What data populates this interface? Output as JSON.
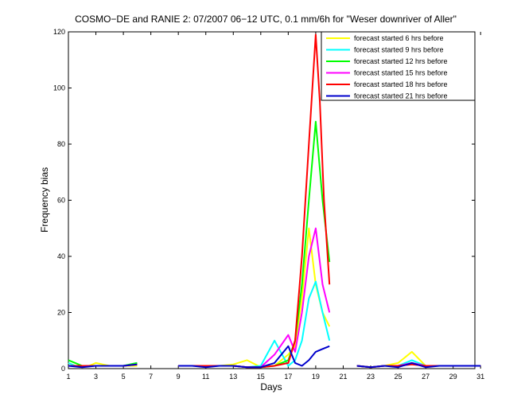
{
  "chart_data": {
    "type": "line",
    "title": "COSMO−DE and RANIE 2: 07/2007 06−12 UTC, 0.1 mm/6h for \"Weser downriver of Aller\"",
    "xlabel": "Days",
    "ylabel": "Frequency bias",
    "xlim": [
      1,
      31
    ],
    "ylim": [
      0,
      120
    ],
    "x_tick_labels": [
      "1",
      "3",
      "5",
      "7",
      "9",
      "11",
      "13",
      "15",
      "17",
      "19",
      "21",
      "23",
      "25",
      "27",
      "29",
      "31"
    ],
    "y_tick_labels": [
      "0",
      "20",
      "40",
      "60",
      "80",
      "100",
      "120"
    ],
    "legend_position": "top-right",
    "grid": false,
    "series": [
      {
        "name": "forecast started 6 hrs before",
        "color": "#ffff00",
        "segments": [
          [
            [
              1,
              2
            ],
            [
              1.5,
              1
            ],
            [
              2,
              1
            ],
            [
              2.5,
              1
            ],
            [
              3,
              2
            ],
            [
              3.5,
              1.5
            ],
            [
              4,
              1
            ],
            [
              4.5,
              1
            ],
            [
              5,
              1
            ],
            [
              6,
              1
            ]
          ],
          [
            [
              9,
              1
            ],
            [
              10,
              1
            ],
            [
              11,
              1
            ],
            [
              12,
              1
            ],
            [
              13,
              1.5
            ],
            [
              14,
              3
            ],
            [
              15,
              0.5
            ],
            [
              16,
              1
            ],
            [
              17,
              5
            ],
            [
              17.5,
              8
            ],
            [
              18,
              25
            ],
            [
              18.5,
              50
            ],
            [
              19,
              30
            ],
            [
              19.5,
              20
            ],
            [
              20,
              15
            ]
          ],
          [
            [
              22,
              1
            ],
            [
              23,
              0.5
            ],
            [
              24,
              1
            ],
            [
              25,
              2
            ],
            [
              26,
              6
            ],
            [
              27,
              1
            ],
            [
              28,
              1
            ],
            [
              29,
              1
            ],
            [
              30,
              1
            ],
            [
              31,
              1
            ]
          ]
        ]
      },
      {
        "name": "forecast started 9 hrs before",
        "color": "#00ffff",
        "segments": [
          [
            [
              1,
              2
            ],
            [
              1.5,
              1
            ],
            [
              2,
              1
            ],
            [
              3,
              1
            ],
            [
              4,
              1
            ],
            [
              5,
              1
            ],
            [
              6,
              2
            ]
          ],
          [
            [
              9,
              1
            ],
            [
              10,
              1
            ],
            [
              11,
              1
            ],
            [
              12,
              1
            ],
            [
              13,
              1
            ],
            [
              14,
              0.5
            ],
            [
              15,
              1
            ],
            [
              16,
              10
            ],
            [
              17,
              1
            ],
            [
              17.5,
              3
            ],
            [
              18,
              10
            ],
            [
              18.5,
              25
            ],
            [
              19,
              31
            ],
            [
              19.5,
              20
            ],
            [
              20,
              10
            ]
          ],
          [
            [
              22,
              1
            ],
            [
              23,
              0.5
            ],
            [
              24,
              1
            ],
            [
              25,
              1
            ],
            [
              26,
              3
            ],
            [
              27,
              1
            ],
            [
              28,
              1
            ],
            [
              29,
              1
            ],
            [
              30,
              1
            ],
            [
              31,
              1
            ]
          ]
        ]
      },
      {
        "name": "forecast started 12 hrs before",
        "color": "#00ff00",
        "segments": [
          [
            [
              1,
              3
            ],
            [
              1.5,
              2
            ],
            [
              2,
              1
            ],
            [
              3,
              1
            ],
            [
              4,
              1
            ],
            [
              5,
              1
            ],
            [
              6,
              2
            ]
          ],
          [
            [
              9,
              1
            ],
            [
              10,
              1
            ],
            [
              11,
              1
            ],
            [
              12,
              1
            ],
            [
              13,
              1
            ],
            [
              14,
              0.5
            ],
            [
              15,
              0.5
            ],
            [
              16,
              1
            ],
            [
              17,
              3
            ],
            [
              17.5,
              10
            ],
            [
              18,
              30
            ],
            [
              18.5,
              60
            ],
            [
              19,
              88
            ],
            [
              19.5,
              60
            ],
            [
              20,
              38
            ]
          ],
          [
            [
              22,
              1
            ],
            [
              23,
              0.5
            ],
            [
              24,
              1
            ],
            [
              25,
              1
            ],
            [
              26,
              2
            ],
            [
              27,
              1
            ],
            [
              28,
              1
            ],
            [
              29,
              1
            ],
            [
              30,
              1
            ],
            [
              31,
              1
            ]
          ]
        ]
      },
      {
        "name": "forecast started 15 hrs before",
        "color": "#ff00ff",
        "segments": [
          [
            [
              1,
              1
            ],
            [
              2,
              1
            ],
            [
              3,
              1
            ],
            [
              4,
              1
            ],
            [
              5,
              1
            ],
            [
              6,
              1.5
            ]
          ],
          [
            [
              9,
              1
            ],
            [
              10,
              1
            ],
            [
              11,
              1
            ],
            [
              12,
              1
            ],
            [
              13,
              1
            ],
            [
              14,
              0.5
            ],
            [
              15,
              0.5
            ],
            [
              16,
              5
            ],
            [
              17,
              12
            ],
            [
              17.5,
              6
            ],
            [
              18,
              20
            ],
            [
              18.5,
              40
            ],
            [
              19,
              50
            ],
            [
              19.5,
              30
            ],
            [
              20,
              20
            ]
          ],
          [
            [
              22,
              1
            ],
            [
              23,
              0.5
            ],
            [
              24,
              1
            ],
            [
              25,
              1
            ],
            [
              26,
              2
            ],
            [
              27,
              1
            ],
            [
              28,
              1
            ],
            [
              29,
              1
            ],
            [
              30,
              1
            ],
            [
              31,
              1
            ]
          ]
        ]
      },
      {
        "name": "forecast started 18 hrs before",
        "color": "#ff0000",
        "segments": [
          [
            [
              1,
              1
            ],
            [
              2,
              1
            ],
            [
              3,
              1
            ],
            [
              4,
              1
            ],
            [
              5,
              1
            ],
            [
              6,
              1.5
            ]
          ],
          [
            [
              9,
              1
            ],
            [
              10,
              1
            ],
            [
              11,
              1
            ],
            [
              12,
              1
            ],
            [
              13,
              1
            ],
            [
              14,
              0.5
            ],
            [
              15,
              0.5
            ],
            [
              16,
              1
            ],
            [
              17,
              2
            ],
            [
              17.5,
              10
            ],
            [
              18,
              40
            ],
            [
              18.5,
              80
            ],
            [
              19,
              119
            ],
            [
              19.3,
              95
            ],
            [
              19.6,
              60
            ],
            [
              20,
              30
            ]
          ],
          [
            [
              22,
              1
            ],
            [
              23,
              0.5
            ],
            [
              24,
              1
            ],
            [
              25,
              1
            ],
            [
              26,
              1.5
            ],
            [
              27,
              1
            ],
            [
              28,
              1
            ],
            [
              29,
              1
            ],
            [
              30,
              1
            ],
            [
              31,
              1
            ]
          ]
        ]
      },
      {
        "name": "forecast started 21 hrs before",
        "color": "#0000cc",
        "segments": [
          [
            [
              1,
              1
            ],
            [
              2,
              0.5
            ],
            [
              3,
              1
            ],
            [
              4,
              1
            ],
            [
              5,
              1
            ],
            [
              6,
              1.5
            ]
          ],
          [
            [
              9,
              1
            ],
            [
              10,
              1
            ],
            [
              11,
              0.5
            ],
            [
              12,
              1
            ],
            [
              13,
              1
            ],
            [
              14,
              0.5
            ],
            [
              15,
              0.5
            ],
            [
              16,
              2
            ],
            [
              17,
              8
            ],
            [
              17.5,
              2
            ],
            [
              18,
              1
            ],
            [
              18.5,
              3
            ],
            [
              19,
              6
            ],
            [
              19.5,
              7
            ],
            [
              20,
              8
            ]
          ],
          [
            [
              22,
              1
            ],
            [
              23,
              0.5
            ],
            [
              24,
              1
            ],
            [
              25,
              0.5
            ],
            [
              26,
              2
            ],
            [
              27,
              0.5
            ],
            [
              28,
              1
            ],
            [
              29,
              1
            ],
            [
              30,
              1
            ],
            [
              31,
              1
            ]
          ]
        ]
      }
    ]
  }
}
